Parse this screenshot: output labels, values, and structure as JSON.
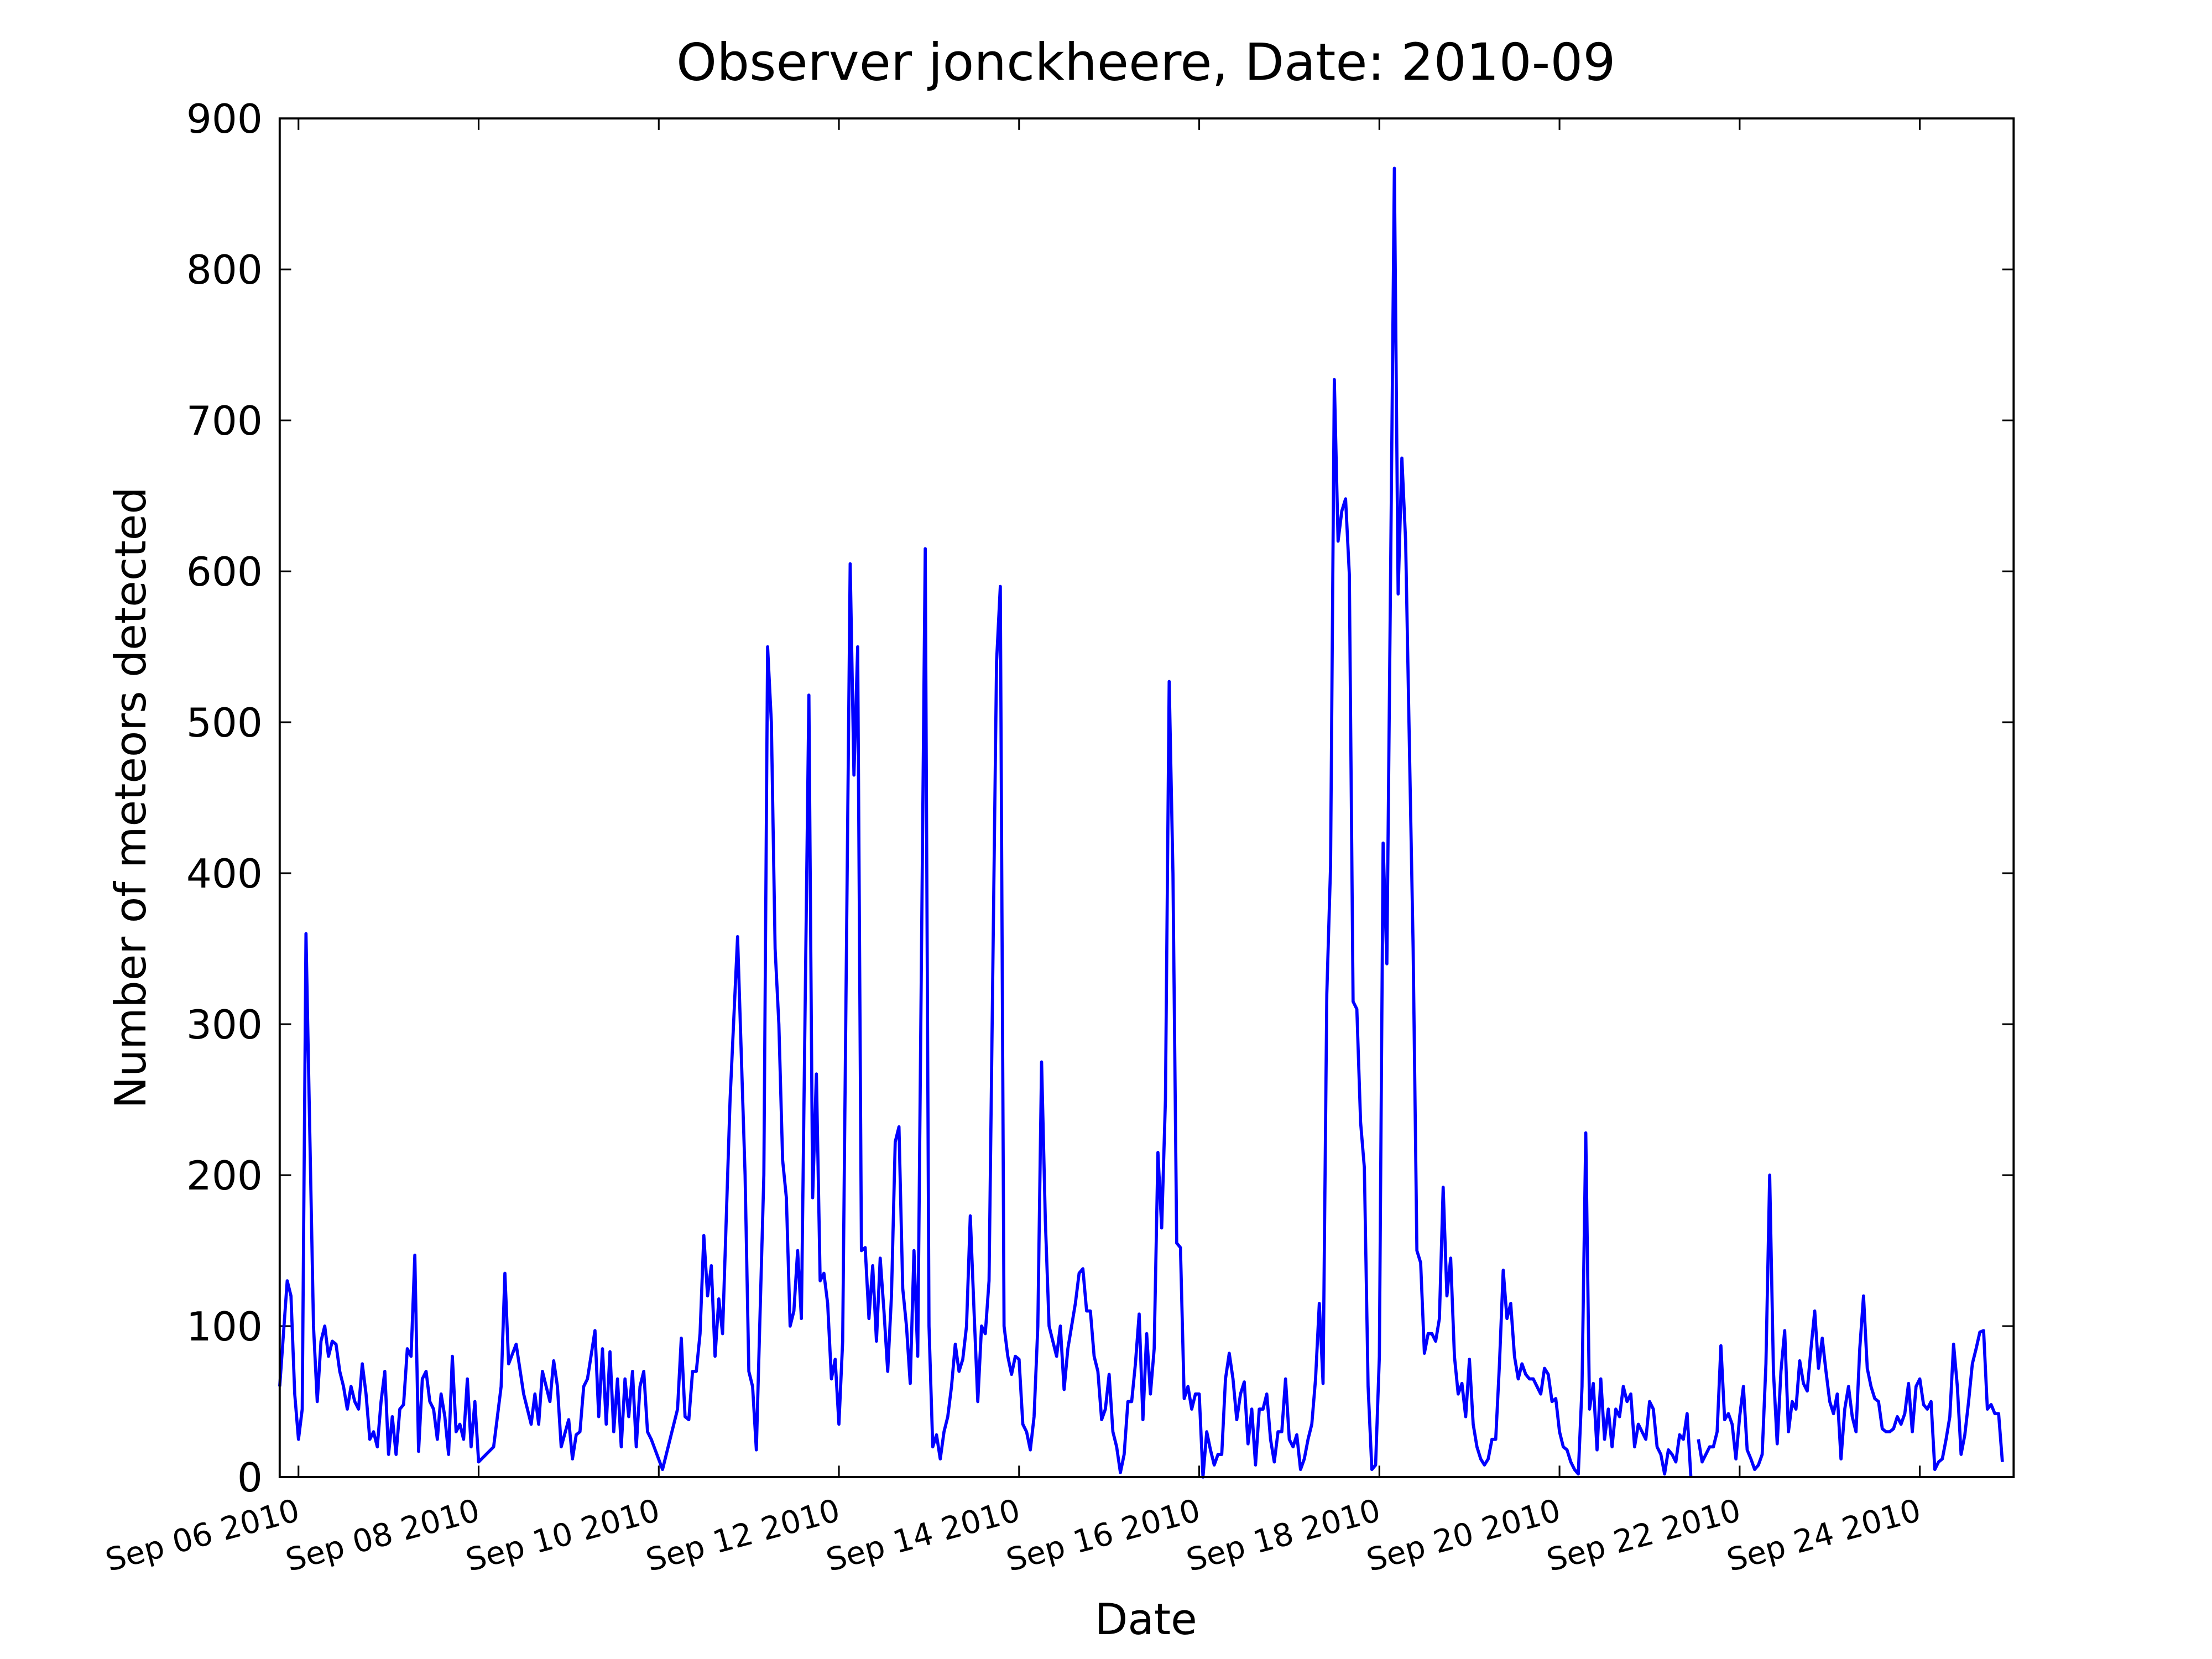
{
  "chart_data": {
    "type": "line",
    "title": "Observer jonckheere, Date: 2010-09",
    "xlabel": "Date",
    "ylabel": "Number of meteors detected",
    "color": "#0000ff",
    "xlim": [
      "2010-09-05 19:00",
      "2010-09-25 01:00"
    ],
    "ylim": [
      0,
      900
    ],
    "yticks": [
      0,
      100,
      200,
      300,
      400,
      500,
      600,
      700,
      800,
      900
    ],
    "xticks": [
      {
        "value": "2010-09-06 00:00",
        "label": "Sep 06 2010"
      },
      {
        "value": "2010-09-08 00:00",
        "label": "Sep 08 2010"
      },
      {
        "value": "2010-09-10 00:00",
        "label": "Sep 10 2010"
      },
      {
        "value": "2010-09-12 00:00",
        "label": "Sep 12 2010"
      },
      {
        "value": "2010-09-14 00:00",
        "label": "Sep 14 2010"
      },
      {
        "value": "2010-09-16 00:00",
        "label": "Sep 16 2010"
      },
      {
        "value": "2010-09-18 00:00",
        "label": "Sep 18 2010"
      },
      {
        "value": "2010-09-20 00:00",
        "label": "Sep 20 2010"
      },
      {
        "value": "2010-09-22 00:00",
        "label": "Sep 22 2010"
      },
      {
        "value": "2010-09-24 00:00",
        "label": "Sep 24 2010"
      }
    ],
    "x": [
      "2010-09-05 19:00",
      "2010-09-05 21:00",
      "2010-09-05 22:00",
      "2010-09-05 23:00",
      "2010-09-06 00:00",
      "2010-09-06 01:00",
      "2010-09-06 02:00",
      "2010-09-06 04:00",
      "2010-09-06 05:00",
      "2010-09-06 06:00",
      "2010-09-06 07:00",
      "2010-09-06 08:00",
      "2010-09-06 09:00",
      "2010-09-06 10:00",
      "2010-09-06 11:00",
      "2010-09-06 12:00",
      "2010-09-06 13:00",
      "2010-09-06 14:00",
      "2010-09-06 15:00",
      "2010-09-06 16:00",
      "2010-09-06 17:00",
      "2010-09-06 18:00",
      "2010-09-06 19:00",
      "2010-09-06 20:00",
      "2010-09-06 21:00",
      "2010-09-06 22:00",
      "2010-09-06 23:00",
      "2010-09-07 00:00",
      "2010-09-07 01:00",
      "2010-09-07 02:00",
      "2010-09-07 03:00",
      "2010-09-07 04:00",
      "2010-09-07 05:00",
      "2010-09-07 06:00",
      "2010-09-07 07:00",
      "2010-09-07 08:00",
      "2010-09-07 09:00",
      "2010-09-07 10:00",
      "2010-09-07 11:00",
      "2010-09-07 12:00",
      "2010-09-07 13:00",
      "2010-09-07 14:00",
      "2010-09-07 15:00",
      "2010-09-07 16:00",
      "2010-09-07 17:00",
      "2010-09-07 18:00",
      "2010-09-07 19:00",
      "2010-09-07 20:00",
      "2010-09-07 21:00",
      "2010-09-07 22:00",
      "2010-09-07 23:00",
      "2010-09-08 00:00",
      "2010-09-08 02:00",
      "2010-09-08 04:00",
      "2010-09-08 06:00",
      "2010-09-08 07:00",
      "2010-09-08 08:00",
      "2010-09-08 10:00",
      "2010-09-08 12:00",
      "2010-09-08 14:00",
      "2010-09-08 15:00",
      "2010-09-08 16:00",
      "2010-09-08 17:00",
      "2010-09-08 19:00",
      "2010-09-08 20:00",
      "2010-09-08 21:00",
      "2010-09-08 22:00",
      "2010-09-09 00:00",
      "2010-09-09 01:00",
      "2010-09-09 02:00",
      "2010-09-09 03:00",
      "2010-09-09 04:00",
      "2010-09-09 05:00",
      "2010-09-09 07:00",
      "2010-09-09 08:00",
      "2010-09-09 09:00",
      "2010-09-09 10:00",
      "2010-09-09 11:00",
      "2010-09-09 12:00",
      "2010-09-09 13:00",
      "2010-09-09 14:00",
      "2010-09-09 15:00",
      "2010-09-09 16:00",
      "2010-09-09 17:00",
      "2010-09-09 18:00",
      "2010-09-09 19:00",
      "2010-09-09 20:00",
      "2010-09-09 21:00",
      "2010-09-09 22:00",
      "2010-09-10 01:00",
      "2010-09-10 03:00",
      "2010-09-10 05:00",
      "2010-09-10 06:00",
      "2010-09-10 07:00",
      "2010-09-10 08:00",
      "2010-09-10 09:00",
      "2010-09-10 10:00",
      "2010-09-10 11:00",
      "2010-09-10 12:00",
      "2010-09-10 13:00",
      "2010-09-10 14:00",
      "2010-09-10 15:00",
      "2010-09-10 16:00",
      "2010-09-10 17:00",
      "2010-09-10 19:00",
      "2010-09-10 21:00",
      "2010-09-10 23:00",
      "2010-09-11 00:00",
      "2010-09-11 01:00",
      "2010-09-11 02:00",
      "2010-09-11 04:00",
      "2010-09-11 05:00",
      "2010-09-11 06:00",
      "2010-09-11 07:00",
      "2010-09-11 08:00",
      "2010-09-11 09:00",
      "2010-09-11 10:00",
      "2010-09-11 11:00",
      "2010-09-11 12:00",
      "2010-09-11 13:00",
      "2010-09-11 14:00",
      "2010-09-11 16:00",
      "2010-09-11 17:00",
      "2010-09-11 18:00",
      "2010-09-11 19:00",
      "2010-09-11 20:00",
      "2010-09-11 21:00",
      "2010-09-11 22:00",
      "2010-09-11 23:00",
      "2010-09-12 00:00",
      "2010-09-12 01:00",
      "2010-09-12 03:00",
      "2010-09-12 04:00",
      "2010-09-12 05:00",
      "2010-09-12 06:00",
      "2010-09-12 07:00",
      "2010-09-12 08:00",
      "2010-09-12 09:00",
      "2010-09-12 10:00",
      "2010-09-12 11:00",
      "2010-09-12 12:00",
      "2010-09-12 13:00",
      "2010-09-12 14:00",
      "2010-09-12 15:00",
      "2010-09-12 16:00",
      "2010-09-12 17:00",
      "2010-09-12 18:00",
      "2010-09-12 19:00",
      "2010-09-12 20:00",
      "2010-09-12 21:00",
      "2010-09-12 23:00",
      "2010-09-13 00:00",
      "2010-09-13 01:00",
      "2010-09-13 02:00",
      "2010-09-13 03:00",
      "2010-09-13 04:00",
      "2010-09-13 05:00",
      "2010-09-13 06:00",
      "2010-09-13 07:00",
      "2010-09-13 08:00",
      "2010-09-13 09:00",
      "2010-09-13 10:00",
      "2010-09-13 11:00",
      "2010-09-13 12:00",
      "2010-09-13 13:00",
      "2010-09-13 14:00",
      "2010-09-13 15:00",
      "2010-09-13 16:00",
      "2010-09-13 18:00",
      "2010-09-13 19:00",
      "2010-09-13 20:00",
      "2010-09-13 21:00",
      "2010-09-13 22:00",
      "2010-09-13 23:00",
      "2010-09-14 00:00",
      "2010-09-14 01:00",
      "2010-09-14 02:00",
      "2010-09-14 03:00",
      "2010-09-14 04:00",
      "2010-09-14 05:00",
      "2010-09-14 06:00",
      "2010-09-14 07:00",
      "2010-09-14 08:00",
      "2010-09-14 09:00",
      "2010-09-14 10:00",
      "2010-09-14 11:00",
      "2010-09-14 12:00",
      "2010-09-14 13:00",
      "2010-09-14 14:00",
      "2010-09-14 15:00",
      "2010-09-14 16:00",
      "2010-09-14 17:00",
      "2010-09-14 18:00",
      "2010-09-14 19:00",
      "2010-09-14 20:00",
      "2010-09-14 21:00",
      "2010-09-14 22:00",
      "2010-09-14 23:00",
      "2010-09-15 00:00",
      "2010-09-15 01:00",
      "2010-09-15 02:00",
      "2010-09-15 03:00",
      "2010-09-15 04:00",
      "2010-09-15 05:00",
      "2010-09-15 06:00",
      "2010-09-15 07:00",
      "2010-09-15 08:00",
      "2010-09-15 09:00",
      "2010-09-15 10:00",
      "2010-09-15 11:00",
      "2010-09-15 12:00",
      "2010-09-15 13:00",
      "2010-09-15 14:00",
      "2010-09-15 15:00",
      "2010-09-15 16:00",
      "2010-09-15 17:00",
      "2010-09-15 18:00",
      "2010-09-15 19:00",
      "2010-09-15 20:00",
      "2010-09-15 21:00",
      "2010-09-15 22:00",
      "2010-09-15 23:00",
      "2010-09-16 00:00",
      "2010-09-16 01:00",
      "2010-09-16 02:00",
      "2010-09-16 03:00",
      "2010-09-16 04:00",
      "2010-09-16 05:00",
      "2010-09-16 06:00",
      "2010-09-16 07:00",
      "2010-09-16 08:00",
      "2010-09-16 09:00",
      "2010-09-16 10:00",
      "2010-09-16 11:00",
      "2010-09-16 12:00",
      "2010-09-16 13:00",
      "2010-09-16 14:00",
      "2010-09-16 15:00",
      "2010-09-16 16:00",
      "2010-09-16 17:00",
      "2010-09-16 18:00",
      "2010-09-16 19:00",
      "2010-09-16 20:00",
      "2010-09-16 21:00",
      "2010-09-16 22:00",
      "2010-09-16 23:00",
      "2010-09-17 00:00",
      "2010-09-17 01:00",
      "2010-09-17 02:00",
      "2010-09-17 03:00",
      "2010-09-17 04:00",
      "2010-09-17 05:00",
      "2010-09-17 06:00",
      "2010-09-17 07:00",
      "2010-09-17 08:00",
      "2010-09-17 09:00",
      "2010-09-17 10:00",
      "2010-09-17 11:00",
      "2010-09-17 12:00",
      "2010-09-17 13:00",
      "2010-09-17 14:00",
      "2010-09-17 15:00",
      "2010-09-17 16:00",
      "2010-09-17 17:00",
      "2010-09-17 18:00",
      "2010-09-17 19:00",
      "2010-09-17 20:00",
      "2010-09-17 21:00",
      "2010-09-17 22:00",
      "2010-09-17 23:00",
      "2010-09-18 00:00",
      "2010-09-18 01:00",
      "2010-09-18 02:00",
      "2010-09-18 03:00",
      "2010-09-18 04:00",
      "2010-09-18 05:00",
      "2010-09-18 06:00",
      "2010-09-18 07:00",
      "2010-09-18 09:00",
      "2010-09-18 10:00",
      "2010-09-18 11:00",
      "2010-09-18 12:00",
      "2010-09-18 13:00",
      "2010-09-18 14:00",
      "2010-09-18 15:00",
      "2010-09-18 16:00",
      "2010-09-18 17:00",
      "2010-09-18 18:00",
      "2010-09-18 19:00",
      "2010-09-18 20:00",
      "2010-09-18 21:00",
      "2010-09-18 22:00",
      "2010-09-18 23:00",
      "2010-09-19 00:00",
      "2010-09-19 01:00",
      "2010-09-19 02:00",
      "2010-09-19 03:00",
      "2010-09-19 04:00",
      "2010-09-19 05:00",
      "2010-09-19 06:00",
      "2010-09-19 07:00",
      "2010-09-19 08:00",
      "2010-09-19 09:00",
      "2010-09-19 10:00",
      "2010-09-19 11:00",
      "2010-09-19 12:00",
      "2010-09-19 13:00",
      "2010-09-19 14:00",
      "2010-09-19 15:00",
      "2010-09-19 16:00",
      "2010-09-19 17:00",
      "2010-09-19 18:00",
      "2010-09-19 19:00",
      "2010-09-19 20:00",
      "2010-09-19 21:00",
      "2010-09-19 22:00",
      "2010-09-19 23:00",
      "2010-09-20 00:00",
      "2010-09-20 01:00",
      "2010-09-20 02:00",
      "2010-09-20 03:00",
      "2010-09-20 04:00",
      "2010-09-20 05:00",
      "2010-09-20 06:00",
      "2010-09-20 07:00",
      "2010-09-20 08:00",
      "2010-09-20 09:00",
      "2010-09-20 10:00",
      "2010-09-20 11:00",
      "2010-09-20 12:00",
      "2010-09-20 13:00",
      "2010-09-20 14:00",
      "2010-09-20 15:00",
      "2010-09-20 16:00",
      "2010-09-20 17:00",
      "2010-09-20 18:00",
      "2010-09-20 19:00",
      "2010-09-20 20:00",
      "2010-09-20 21:00",
      "2010-09-20 22:00",
      "2010-09-20 23:00",
      "2010-09-21 00:00",
      "2010-09-21 01:00",
      "2010-09-21 02:00",
      "2010-09-21 03:00",
      "2010-09-21 04:00",
      "2010-09-21 05:00",
      "2010-09-21 06:00",
      "2010-09-21 07:00",
      "2010-09-21 08:00",
      "2010-09-21 09:00",
      "2010-09-21 10:00",
      "2010-09-21 11:00",
      "2010-09-21 12:00",
      "2010-09-21 13:00",
      "2010-09-21 14:00",
      "2010-09-21 15:00",
      "2010-09-21 16:00",
      "2010-09-21 17:00",
      "2010-09-21 18:00",
      "2010-09-21 19:00",
      "2010-09-21 20:00",
      "2010-09-21 21:00",
      "2010-09-21 22:00",
      "2010-09-21 23:00",
      "2010-09-22 00:00",
      "2010-09-22 01:00",
      "2010-09-22 02:00",
      "2010-09-22 03:00",
      "2010-09-22 04:00",
      "2010-09-22 05:00",
      "2010-09-22 06:00",
      "2010-09-22 07:00",
      "2010-09-22 08:00",
      "2010-09-22 09:00",
      "2010-09-22 10:00",
      "2010-09-22 11:00",
      "2010-09-22 12:00",
      "2010-09-22 13:00",
      "2010-09-22 14:00",
      "2010-09-22 15:00",
      "2010-09-22 16:00",
      "2010-09-22 17:00",
      "2010-09-22 18:00",
      "2010-09-22 19:00",
      "2010-09-22 20:00",
      "2010-09-22 21:00",
      "2010-09-22 22:00",
      "2010-09-22 23:00",
      "2010-09-23 00:00",
      "2010-09-23 01:00",
      "2010-09-23 02:00",
      "2010-09-23 03:00",
      "2010-09-23 04:00",
      "2010-09-23 05:00",
      "2010-09-23 06:00",
      "2010-09-23 07:00",
      "2010-09-23 08:00",
      "2010-09-23 09:00",
      "2010-09-23 10:00",
      "2010-09-23 11:00",
      "2010-09-23 12:00",
      "2010-09-23 13:00",
      "2010-09-23 14:00",
      "2010-09-23 15:00",
      "2010-09-23 16:00",
      "2010-09-23 17:00",
      "2010-09-23 18:00",
      "2010-09-23 19:00",
      "2010-09-23 20:00",
      "2010-09-23 21:00",
      "2010-09-23 22:00",
      "2010-09-23 23:00",
      "2010-09-24 00:00",
      "2010-09-24 01:00",
      "2010-09-24 02:00",
      "2010-09-24 03:00",
      "2010-09-24 04:00",
      "2010-09-24 05:00",
      "2010-09-24 06:00",
      "2010-09-24 07:00",
      "2010-09-24 08:00",
      "2010-09-24 09:00",
      "2010-09-24 10:00",
      "2010-09-24 11:00",
      "2010-09-24 12:00",
      "2010-09-24 13:00",
      "2010-09-24 14:00",
      "2010-09-24 15:00",
      "2010-09-24 16:00",
      "2010-09-24 17:00",
      "2010-09-24 18:00",
      "2010-09-24 19:00",
      "2010-09-24 20:00",
      "2010-09-24 21:00",
      "2010-09-24 22:00"
    ],
    "values": [
      60,
      130,
      120,
      55,
      25,
      45,
      360,
      100,
      50,
      90,
      100,
      80,
      90,
      88,
      70,
      60,
      45,
      60,
      50,
      45,
      75,
      55,
      25,
      30,
      20,
      50,
      70,
      15,
      40,
      15,
      45,
      48,
      85,
      80,
      147,
      17,
      65,
      70,
      50,
      45,
      25,
      55,
      40,
      15,
      80,
      30,
      35,
      25,
      65,
      20,
      50,
      10,
      15,
      20,
      60,
      135,
      75,
      88,
      55,
      35,
      55,
      35,
      70,
      50,
      77,
      60,
      20,
      38,
      12,
      28,
      30,
      60,
      65,
      97,
      40,
      85,
      35,
      83,
      30,
      65,
      20,
      65,
      40,
      70,
      20,
      60,
      70,
      30,
      25,
      5,
      25,
      45,
      92,
      40,
      38,
      70,
      70,
      95,
      160,
      120,
      140,
      80,
      118,
      95,
      250,
      358,
      200,
      70,
      60,
      18,
      200,
      550,
      500,
      350,
      300,
      210,
      185,
      100,
      110,
      150,
      105,
      518,
      185,
      267,
      130,
      135,
      115,
      65,
      78,
      35,
      90,
      605,
      465,
      550,
      150,
      152,
      105,
      140,
      90,
      145,
      110,
      70,
      120,
      222,
      232,
      125,
      100,
      62,
      150,
      80,
      615,
      100,
      20,
      28,
      12,
      30,
      40,
      60,
      88,
      70,
      78,
      100,
      173,
      110,
      50,
      100,
      95,
      130,
      540,
      590,
      100,
      80,
      68,
      80,
      78,
      35,
      30,
      18,
      40,
      100,
      275,
      170,
      100,
      90,
      80,
      100,
      58,
      85,
      100,
      115,
      135,
      138,
      110,
      110,
      80,
      70,
      38,
      45,
      68,
      30,
      20,
      3,
      15,
      50,
      50,
      75,
      108,
      38,
      95,
      55,
      85,
      215,
      165,
      250,
      527,
      400,
      155,
      152,
      52,
      60,
      45,
      55,
      55,
      0,
      30,
      18,
      8,
      15,
      15,
      65,
      82,
      65,
      38,
      55,
      63,
      22,
      45,
      8,
      45,
      45,
      55,
      25,
      10,
      30,
      30,
      65,
      25,
      20,
      28,
      5,
      12,
      25,
      35,
      65,
      115,
      62,
      320,
      405,
      727,
      620,
      640,
      648,
      598,
      315,
      310,
      235,
      205,
      60,
      5,
      8,
      80,
      420,
      340,
      600,
      867,
      585,
      675,
      620,
      350,
      150,
      142,
      82,
      95,
      95,
      90,
      105,
      192,
      120,
      145,
      80,
      55,
      62,
      40,
      78,
      35,
      20,
      12,
      8,
      12,
      25,
      25,
      75,
      137,
      105,
      115,
      80,
      65,
      75,
      68,
      65,
      65,
      60,
      55,
      72,
      68,
      50,
      52,
      30,
      20,
      18,
      10,
      5,
      2,
      60,
      228,
      45,
      62,
      18,
      65,
      25,
      45,
      20,
      45,
      40,
      60,
      50,
      55,
      20,
      35,
      30,
      25,
      50,
      45,
      20,
      15,
      2,
      18,
      15,
      10,
      28,
      25,
      42,
      0,
      null,
      25,
      10,
      15,
      20,
      20,
      30,
      87,
      38,
      42,
      35,
      12,
      40,
      60,
      18,
      12,
      5,
      8,
      15,
      75,
      200,
      70,
      22,
      70,
      97,
      30,
      50,
      45,
      77,
      62,
      57,
      85,
      110,
      72,
      92,
      70,
      50,
      42,
      55,
      12,
      45,
      60,
      40,
      30,
      85,
      120,
      72,
      60,
      52,
      50,
      32,
      30,
      30,
      32,
      40,
      35,
      42,
      62,
      30,
      60,
      65,
      48,
      45,
      50,
      5,
      10,
      12,
      25,
      40,
      88,
      60,
      15,
      28,
      50,
      75,
      85,
      96,
      97,
      45,
      48,
      42,
      42,
      10
    ]
  }
}
